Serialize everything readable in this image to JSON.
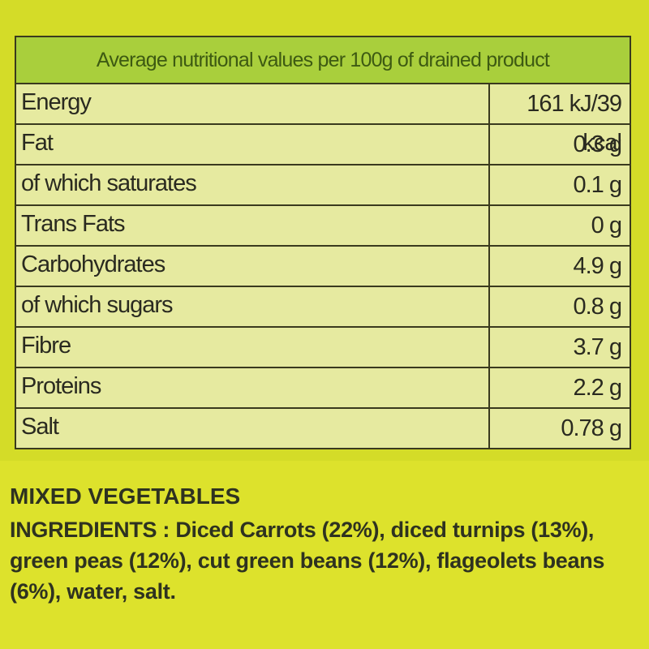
{
  "header": {
    "title": "Average nutritional values per 100g of drained product"
  },
  "table": {
    "rows": [
      [
        "Energy",
        "161 kJ/39 kcal"
      ],
      [
        "Fat",
        "0.3 g"
      ],
      [
        "of which saturates",
        "0.1 g"
      ],
      [
        "Trans Fats",
        "0 g"
      ],
      [
        "Carbohydrates",
        "4.9 g"
      ],
      [
        "of which sugars",
        "0.8 g"
      ],
      [
        "Fibre",
        "3.7 g"
      ],
      [
        "Proteins",
        "2.2 g"
      ],
      [
        "Salt",
        "0.78 g"
      ]
    ]
  },
  "product": {
    "name": "MIXED VEGETABLES",
    "ingredients_label": "INGREDIENTS",
    "ingredients": " : Diced Carrots (22%), diced turnips (13%), green peas (12%), cut green beans (12%), flageolets beans (6%), water, salt."
  }
}
